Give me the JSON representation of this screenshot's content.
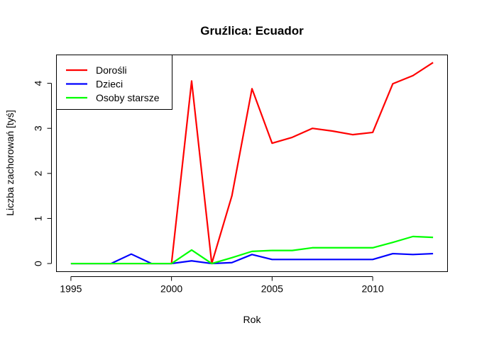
{
  "chart_data": {
    "type": "line",
    "title": "Gruźlica: Ecuador",
    "xlabel": "Rok",
    "ylabel": "Liczba zachorowań [tyś]",
    "x": [
      1995,
      1996,
      1997,
      1998,
      1999,
      2000,
      2001,
      2002,
      2003,
      2004,
      2005,
      2006,
      2007,
      2008,
      2009,
      2010,
      2011,
      2012,
      2013
    ],
    "xlim": [
      1994.28,
      2013.72
    ],
    "ylim": [
      -0.18,
      4.63
    ],
    "xticks": [
      1995,
      2000,
      2005,
      2010
    ],
    "yticks": [
      0,
      1,
      2,
      3,
      4
    ],
    "grid": false,
    "legend_position": "top-left",
    "series": [
      {
        "name": "Dorośli",
        "color": "#ff0000",
        "values": [
          0,
          0,
          0,
          0,
          0,
          0,
          4.05,
          0,
          1.5,
          3.88,
          2.67,
          2.8,
          3.0,
          2.94,
          2.86,
          2.91,
          3.99,
          4.17,
          4.46
        ]
      },
      {
        "name": "Dzieci",
        "color": "#0000ff",
        "values": [
          0,
          0,
          0,
          0.21,
          0,
          0,
          0.06,
          0,
          0.02,
          0.2,
          0.09,
          0.09,
          0.09,
          0.09,
          0.09,
          0.09,
          0.22,
          0.2,
          0.22
        ]
      },
      {
        "name": "Osoby starsze",
        "color": "#00ff00",
        "values": [
          0,
          0,
          0,
          0,
          0,
          0,
          0.3,
          0,
          0.13,
          0.27,
          0.29,
          0.29,
          0.35,
          0.35,
          0.35,
          0.35,
          0.47,
          0.6,
          0.58
        ]
      }
    ]
  }
}
